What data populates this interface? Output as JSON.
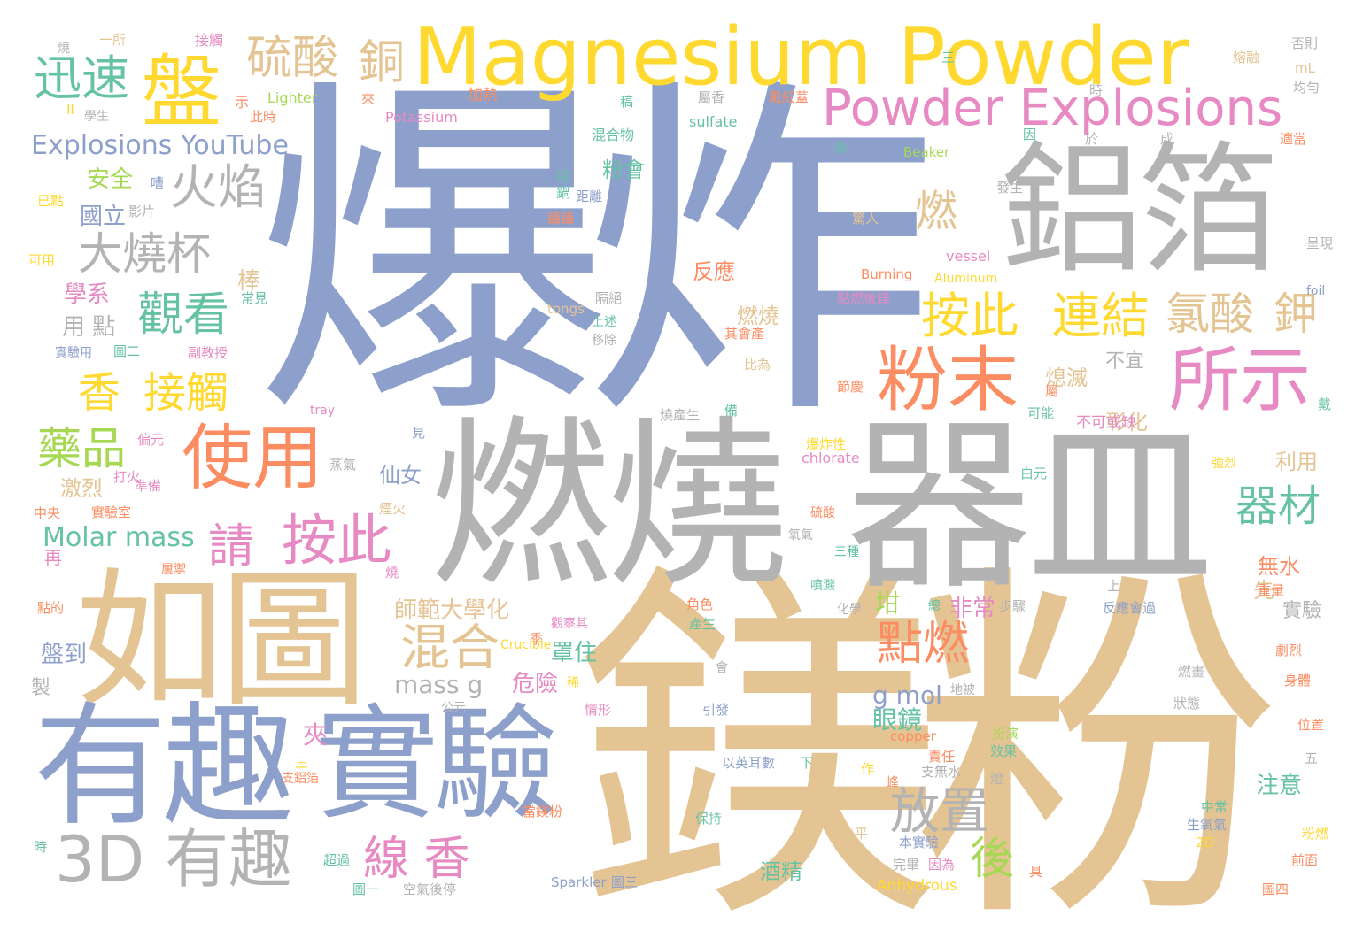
{
  "palette": {
    "blue": "#8da0cb",
    "tan": "#e5c494",
    "gray": "#b3b3b3",
    "yellow": "#ffd92f",
    "pink": "#e78ac3",
    "orange": "#fc8d62",
    "green": "#66c2a5",
    "lime": "#a6d854"
  },
  "words": [
    {
      "text": "爆炸",
      "color": "blue"
    },
    {
      "text": "鎂粉",
      "color": "tan"
    },
    {
      "text": "燃燒",
      "color": "gray"
    },
    {
      "text": "器皿",
      "color": "gray"
    },
    {
      "text": "鋁箔",
      "color": "gray"
    },
    {
      "text": "如圖",
      "color": "tan"
    },
    {
      "text": "有趣",
      "color": "blue"
    },
    {
      "text": "實驗",
      "color": "blue"
    },
    {
      "text": "Magnesium Powder",
      "color": "yellow"
    },
    {
      "text": "Powder Explosions",
      "color": "pink"
    },
    {
      "text": "3D 有趣",
      "color": "gray"
    },
    {
      "text": "使用",
      "color": "orange"
    },
    {
      "text": "粉末",
      "color": "orange"
    },
    {
      "text": "所示",
      "color": "pink"
    },
    {
      "text": "盤",
      "color": "yellow"
    },
    {
      "text": "硫酸",
      "color": "tan"
    },
    {
      "text": "銅",
      "color": "tan"
    },
    {
      "text": "迅速",
      "color": "green"
    },
    {
      "text": "Explosions YouTube",
      "color": "blue"
    },
    {
      "text": "火焰",
      "color": "gray"
    },
    {
      "text": "大燒杯",
      "color": "gray"
    },
    {
      "text": "觀看",
      "color": "green"
    },
    {
      "text": "香",
      "color": "yellow"
    },
    {
      "text": "接觸",
      "color": "yellow"
    },
    {
      "text": "藥品",
      "color": "lime"
    },
    {
      "text": "請",
      "color": "pink"
    },
    {
      "text": "按此",
      "color": "pink"
    },
    {
      "text": "按此",
      "color": "yellow"
    },
    {
      "text": "連結",
      "color": "yellow"
    },
    {
      "text": "氯酸",
      "color": "tan"
    },
    {
      "text": "鉀",
      "color": "tan"
    },
    {
      "text": "燃",
      "color": "tan"
    },
    {
      "text": "器材",
      "color": "green"
    },
    {
      "text": "點燃",
      "color": "orange"
    },
    {
      "text": "混合",
      "color": "tan"
    },
    {
      "text": "放置",
      "color": "gray"
    },
    {
      "text": "線 香",
      "color": "pink"
    },
    {
      "text": "後",
      "color": "lime"
    },
    {
      "text": "Molar mass",
      "color": "green"
    },
    {
      "text": "mass g",
      "color": "gray"
    },
    {
      "text": "g mol",
      "color": "blue"
    },
    {
      "text": "眼鏡",
      "color": "green"
    },
    {
      "text": "非常",
      "color": "pink"
    },
    {
      "text": "危險",
      "color": "pink"
    },
    {
      "text": "師範大學化",
      "color": "tan"
    },
    {
      "text": "罩住",
      "color": "green"
    },
    {
      "text": "坩",
      "color": "lime"
    },
    {
      "text": "仙女",
      "color": "blue"
    },
    {
      "text": "激烈",
      "color": "tan"
    },
    {
      "text": "安全",
      "color": "lime"
    },
    {
      "text": "國立",
      "color": "blue"
    },
    {
      "text": "學系",
      "color": "pink"
    },
    {
      "text": "用 點",
      "color": "gray"
    },
    {
      "text": "盤到",
      "color": "blue"
    },
    {
      "text": "酒精",
      "color": "green"
    },
    {
      "text": "注意",
      "color": "green"
    },
    {
      "text": "利用",
      "color": "tan"
    },
    {
      "text": "實驗",
      "color": "gray"
    },
    {
      "text": "無水",
      "color": "orange"
    },
    {
      "text": "彰化",
      "color": "tan"
    },
    {
      "text": "熄滅",
      "color": "tan"
    },
    {
      "text": "不宜",
      "color": "gray"
    },
    {
      "text": "燃燒",
      "color": "tan"
    },
    {
      "text": "反應",
      "color": "orange"
    },
    {
      "text": "粉會",
      "color": "green"
    },
    {
      "text": "棒",
      "color": "tan"
    },
    {
      "text": "夾",
      "color": "pink"
    },
    {
      "text": "先",
      "color": "tan"
    },
    {
      "text": "鎂",
      "color": "tan"
    },
    {
      "text": "製",
      "color": "gray"
    },
    {
      "text": "再",
      "color": "pink"
    },
    {
      "text": "Potassium",
      "color": "pink"
    },
    {
      "text": "Lighter",
      "color": "lime"
    },
    {
      "text": "sulfate",
      "color": "green"
    },
    {
      "text": "Beaker",
      "color": "lime"
    },
    {
      "text": "vessel",
      "color": "pink"
    },
    {
      "text": "Aluminum",
      "color": "yellow"
    },
    {
      "text": "Burning",
      "color": "orange"
    },
    {
      "text": "tongs",
      "color": "tan"
    },
    {
      "text": "chlorate",
      "color": "pink"
    },
    {
      "text": "Crucible",
      "color": "yellow"
    },
    {
      "text": "copper",
      "color": "orange"
    },
    {
      "text": "Sparkler",
      "color": "blue"
    },
    {
      "text": "Anhydrous",
      "color": "yellow"
    },
    {
      "text": "tray",
      "color": "pink"
    },
    {
      "text": "foil",
      "color": "blue"
    },
    {
      "text": "mL",
      "color": "tan"
    },
    {
      "text": "一所",
      "color": "tan"
    },
    {
      "text": "接觸",
      "color": "pink"
    },
    {
      "text": "燒",
      "color": "gray"
    },
    {
      "text": "混合物",
      "color": "green"
    },
    {
      "text": "加熱",
      "color": "orange"
    },
    {
      "text": "示",
      "color": "orange"
    },
    {
      "text": "此時",
      "color": "orange"
    },
    {
      "text": "學生",
      "color": "gray"
    },
    {
      "text": "不可或缺",
      "color": "pink"
    },
    {
      "text": "可能",
      "color": "green"
    },
    {
      "text": "發生",
      "color": "gray"
    },
    {
      "text": "驚人",
      "color": "tan"
    },
    {
      "text": "點燃後鎂",
      "color": "pink"
    },
    {
      "text": "其會產",
      "color": "orange"
    },
    {
      "text": "比為",
      "color": "tan"
    },
    {
      "text": "節慶",
      "color": "orange"
    },
    {
      "text": "燒產生",
      "color": "gray"
    },
    {
      "text": "硫酸",
      "color": "orange"
    },
    {
      "text": "氧氣",
      "color": "gray"
    },
    {
      "text": "三種",
      "color": "green"
    },
    {
      "text": "噴濺",
      "color": "green"
    },
    {
      "text": "化學",
      "color": "gray"
    },
    {
      "text": "角色",
      "color": "orange"
    },
    {
      "text": "產生",
      "color": "green"
    },
    {
      "text": "步驟",
      "color": "gray"
    },
    {
      "text": "反應會過",
      "color": "blue"
    },
    {
      "text": "劇烈",
      "color": "orange"
    },
    {
      "text": "身體",
      "color": "orange"
    },
    {
      "text": "位置",
      "color": "orange"
    },
    {
      "text": "燃畫",
      "color": "gray"
    },
    {
      "text": "狀態",
      "color": "gray"
    },
    {
      "text": "扮演",
      "color": "lime"
    },
    {
      "text": "效果",
      "color": "green"
    },
    {
      "text": "責任",
      "color": "orange"
    },
    {
      "text": "中常",
      "color": "green"
    },
    {
      "text": "生氧氣",
      "color": "blue"
    },
    {
      "text": "2D",
      "color": "yellow"
    },
    {
      "text": "粉燃",
      "color": "yellow"
    },
    {
      "text": "前面",
      "color": "orange"
    },
    {
      "text": "圖四",
      "color": "orange"
    },
    {
      "text": "圖三",
      "color": "blue"
    },
    {
      "text": "圖一",
      "color": "green"
    },
    {
      "text": "圖二",
      "color": "green"
    },
    {
      "text": "本實驗",
      "color": "blue"
    },
    {
      "text": "完畢",
      "color": "gray"
    },
    {
      "text": "因為",
      "color": "pink"
    },
    {
      "text": "水平",
      "color": "tan"
    },
    {
      "text": "保持",
      "color": "green"
    },
    {
      "text": "當鎂粉",
      "color": "orange"
    },
    {
      "text": "超過",
      "color": "green"
    },
    {
      "text": "空氣後停",
      "color": "gray"
    },
    {
      "text": "以英耳數",
      "color": "blue"
    },
    {
      "text": "支無水",
      "color": "gray"
    },
    {
      "text": "引發",
      "color": "blue"
    },
    {
      "text": "情形",
      "color": "pink"
    },
    {
      "text": "公元",
      "color": "gray"
    },
    {
      "text": "觀察其",
      "color": "pink"
    },
    {
      "text": "支鋁箔",
      "color": "orange"
    },
    {
      "text": "實驗室",
      "color": "orange"
    },
    {
      "text": "準備",
      "color": "pink"
    },
    {
      "text": "打火",
      "color": "pink"
    },
    {
      "text": "中央",
      "color": "orange"
    },
    {
      "text": "煙火",
      "color": "tan"
    },
    {
      "text": "蒸氣",
      "color": "gray"
    },
    {
      "text": "偏元",
      "color": "pink"
    },
    {
      "text": "副教授",
      "color": "pink"
    },
    {
      "text": "實驗用",
      "color": "blue"
    },
    {
      "text": "常見",
      "color": "green"
    },
    {
      "text": "已點",
      "color": "yellow"
    },
    {
      "text": "可用",
      "color": "yellow"
    },
    {
      "text": "影片",
      "color": "gray"
    },
    {
      "text": "隔絕",
      "color": "gray"
    },
    {
      "text": "上述",
      "color": "green"
    },
    {
      "text": "移除",
      "color": "gray"
    },
    {
      "text": "鑷鑷",
      "color": "orange"
    },
    {
      "text": "距離",
      "color": "blue"
    },
    {
      "text": "呈現",
      "color": "gray"
    },
    {
      "text": "否則",
      "color": "gray"
    },
    {
      "text": "均勻",
      "color": "gray"
    },
    {
      "text": "適當",
      "color": "orange"
    },
    {
      "text": "熔融",
      "color": "tan"
    },
    {
      "text": "戴紅蓋",
      "color": "orange"
    },
    {
      "text": "屬香",
      "color": "gray"
    },
    {
      "text": "白元",
      "color": "green"
    },
    {
      "text": "強烈",
      "color": "yellow"
    },
    {
      "text": "重量",
      "color": "orange"
    },
    {
      "text": "爆炸性",
      "color": "yellow"
    },
    {
      "text": "五",
      "color": "gray"
    },
    {
      "text": "下",
      "color": "green"
    },
    {
      "text": "作",
      "color": "yellow"
    },
    {
      "text": "具",
      "color": "orange"
    },
    {
      "text": "戴",
      "color": "green"
    },
    {
      "text": "備",
      "color": "green"
    },
    {
      "text": "燈",
      "color": "gray"
    },
    {
      "text": "三",
      "color": "yellow"
    },
    {
      "text": "時",
      "color": "green"
    },
    {
      "text": "係",
      "color": "green"
    },
    {
      "text": "因",
      "color": "green"
    },
    {
      "text": "於",
      "color": "gray"
    },
    {
      "text": "成",
      "color": "gray"
    },
    {
      "text": "稿",
      "color": "green"
    },
    {
      "text": "來",
      "color": "orange"
    },
    {
      "text": "見",
      "color": "blue"
    },
    {
      "text": "坩",
      "color": "green"
    },
    {
      "text": "鍋",
      "color": "green"
    },
    {
      "text": "稀",
      "color": "yellow"
    },
    {
      "text": "上",
      "color": "gray"
    },
    {
      "text": "會",
      "color": "gray"
    },
    {
      "text": "點的",
      "color": "orange"
    },
    {
      "text": "屬",
      "color": "orange"
    },
    {
      "text": "屢禦",
      "color": "orange"
    },
    {
      "text": "時",
      "color": "gray"
    },
    {
      "text": "燒",
      "color": "pink"
    },
    {
      "text": "總",
      "color": "green"
    },
    {
      "text": "嘈",
      "color": "blue"
    },
    {
      "text": "地被",
      "color": "gray"
    },
    {
      "text": "峰",
      "color": "orange"
    },
    {
      "text": "季",
      "color": "orange"
    },
    {
      "text": "II",
      "color": "yellow"
    },
    {
      "text": "三",
      "color": "green"
    }
  ]
}
